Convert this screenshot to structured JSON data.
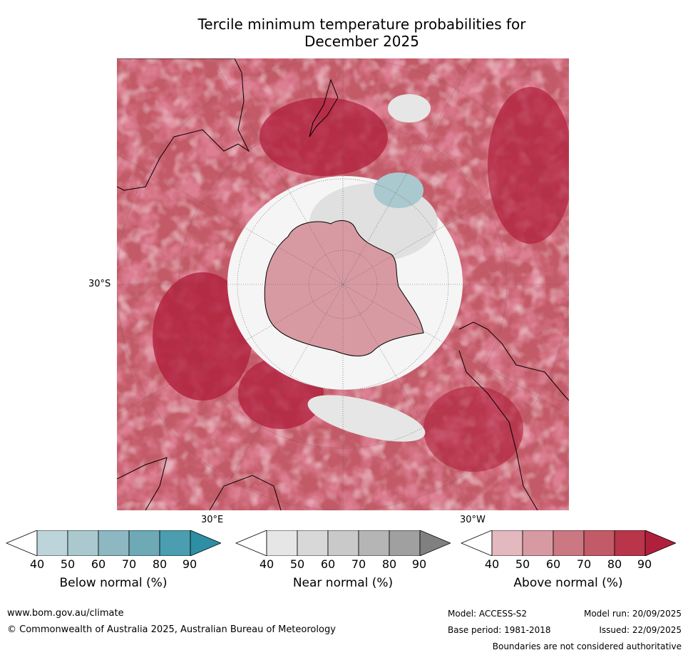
{
  "title_line1": "Tercile minimum temperature probabilities for",
  "title_line2": "December 2025",
  "map": {
    "lat_label": "30°S",
    "lon_label_east": "30°E",
    "lon_label_west": "30°W"
  },
  "colorbars": [
    {
      "label": "Below normal (%)",
      "ticks": [
        "40",
        "50",
        "60",
        "70",
        "80",
        "90"
      ],
      "colors": [
        "#ffffff",
        "#bcd4da",
        "#a9c9cf",
        "#8db7c1",
        "#6eaab6",
        "#4a9eaf",
        "#2e8ea3"
      ]
    },
    {
      "label": "Near normal (%)",
      "ticks": [
        "40",
        "50",
        "60",
        "70",
        "80",
        "90"
      ],
      "colors": [
        "#ffffff",
        "#e6e6e6",
        "#d8d8d8",
        "#c9c9c9",
        "#b5b5b5",
        "#a0a0a0",
        "#808080"
      ]
    },
    {
      "label": "Above normal (%)",
      "ticks": [
        "40",
        "50",
        "60",
        "70",
        "80",
        "90"
      ],
      "colors": [
        "#ffffff",
        "#e3b8bf",
        "#d79aa3",
        "#cb7883",
        "#c25a67",
        "#b9354a",
        "#b01f3c"
      ]
    }
  ],
  "footer": {
    "website": "www.bom.gov.au/climate",
    "copyright": "© Commonwealth of Australia 2025, Australian Bureau of Meteorology",
    "model": "Model: ACCESS-S2",
    "model_run": "Model run: 20/09/2025",
    "base_period": "Base period: 1981-2018",
    "issued": "Issued: 22/09/2025",
    "disclaimer": "Boundaries are not considered authoritative"
  }
}
